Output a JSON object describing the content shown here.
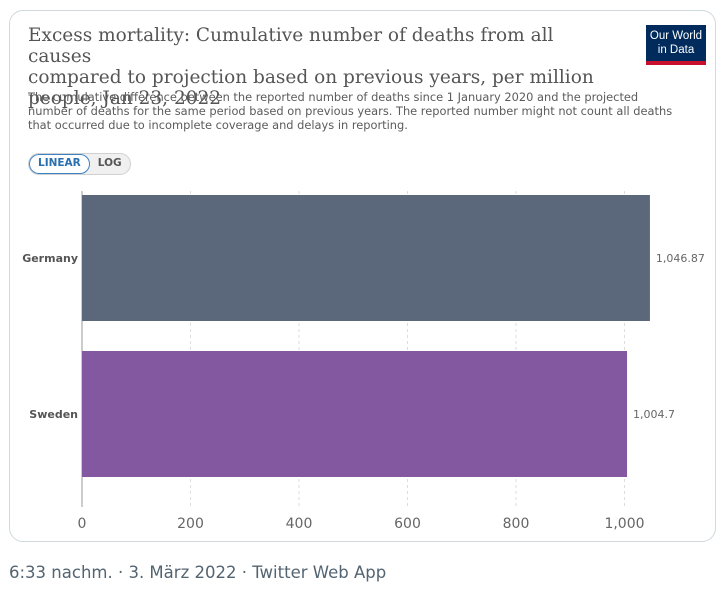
{
  "card": {
    "title_lines": [
      "Excess mortality: Cumulative number of deaths from all causes",
      "compared to projection based on previous years, per million",
      "people, Jan 23, 2022"
    ],
    "subtitle_lines": [
      "The cumulative difference between the reported number of deaths since 1 January 2020 and the projected",
      "number of deaths for the same period based on previous years. The reported number might not count all deaths",
      "that occurred due to incomplete coverage and delays in reporting."
    ],
    "logo_lines": [
      "Our World",
      "in Data"
    ],
    "scale_toggle": {
      "linear": "LINEAR",
      "log": "LOG",
      "selected": "LINEAR"
    }
  },
  "chart_data": {
    "type": "bar",
    "orientation": "horizontal",
    "title": "Excess mortality: Cumulative number of deaths from all causes compared to projection based on previous years, per million people, Jan 23, 2022",
    "categories": [
      "Germany",
      "Sweden"
    ],
    "values": [
      1046.87,
      1004.7
    ],
    "value_labels": [
      "1,046.87",
      "1,004.7"
    ],
    "colors": [
      "#5b677b",
      "#8358a1"
    ],
    "xlim": [
      0,
      1050
    ],
    "xticks": [
      0,
      200,
      400,
      600,
      800,
      1000
    ],
    "xtick_labels": [
      "0",
      "200",
      "400",
      "600",
      "800",
      "1,000"
    ],
    "grid": true,
    "xlabel": "",
    "ylabel": ""
  },
  "tweet_footer": "6:33 nachm. · 3. März 2022 · Twitter Web App"
}
